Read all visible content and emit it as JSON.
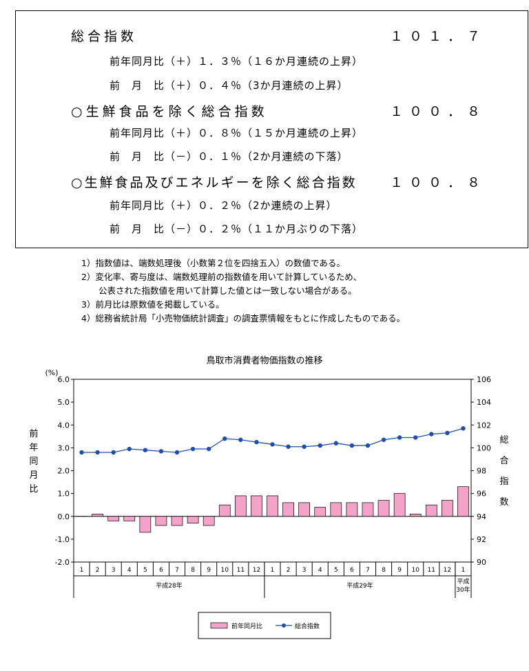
{
  "summary": {
    "items": [
      {
        "label": "総合指数",
        "value": "１０１．７",
        "yoy": "前年同月比（＋）１．３％（１６か月連続の上昇）",
        "mom": "前　月　比（＋）０．４％（3か月連続の上昇）"
      },
      {
        "label": "○生鮮食品を除く総合指数",
        "value": "１００．８",
        "yoy": "前年同月比（＋）０．８％（１５か月連続の上昇）",
        "mom": "前　月　比（－）０．１％（2か月連続の下落）"
      },
      {
        "label": "○生鮮食品及びエネルギーを除く総合指数",
        "value": "１００．８",
        "yoy": "前年同月比（＋）０．２％（2か連続の上昇）",
        "mom": "前　月　比（－）０．２％（１１か月ぶりの下落）"
      }
    ]
  },
  "notes": [
    "1）指数値は、端数処理後（小数第２位を四捨五入）の数値である。",
    "2）変化率、寄与度は、端数処理前の指数値を用いて計算しているため、",
    "　　公表された指数値を用いて計算した値とは一致しない場合がある。",
    "3）前月比は原数値を掲載している。",
    "4）総務省統計局「小売物価統計調査」の調査票情報をもとに作成したものである。"
  ],
  "chart_data": {
    "type": "bar",
    "title": "鳥取市消費者物価指数の推移",
    "y_unit": "(%)",
    "ylabel": "前年同月比",
    "y2label": "総合指数",
    "ylim": [
      -2.0,
      6.0
    ],
    "y_ticks": [
      "6.0",
      "5.0",
      "4.0",
      "3.0",
      "2.0",
      "1.0",
      "0.0",
      "-1.0",
      "-2.0"
    ],
    "y2lim": [
      90,
      106
    ],
    "y2_ticks": [
      "106",
      "104",
      "102",
      "100",
      "98",
      "96",
      "94",
      "92",
      "90"
    ],
    "categories": [
      "1",
      "2",
      "3",
      "4",
      "5",
      "6",
      "7",
      "8",
      "9",
      "10",
      "11",
      "12",
      "1",
      "2",
      "3",
      "4",
      "5",
      "6",
      "7",
      "8",
      "9",
      "10",
      "11",
      "12",
      "1"
    ],
    "year_groups": [
      {
        "label": "平成28年",
        "count": 12
      },
      {
        "label": "平成29年",
        "count": 12
      },
      {
        "label": "平成\n30年",
        "count": 1
      }
    ],
    "series": [
      {
        "name": "前年同月比",
        "type": "bar",
        "axis": "left",
        "color": "#f4a3c8",
        "values": [
          0.0,
          0.1,
          -0.2,
          -0.2,
          -0.7,
          -0.4,
          -0.4,
          -0.3,
          -0.4,
          0.5,
          0.9,
          0.9,
          0.9,
          0.6,
          0.6,
          0.4,
          0.6,
          0.6,
          0.6,
          0.7,
          1.0,
          0.1,
          0.5,
          0.7,
          1.3
        ]
      },
      {
        "name": "総合指数",
        "type": "line",
        "axis": "right",
        "color": "#1f4fa8",
        "values": [
          99.6,
          99.6,
          99.6,
          99.9,
          99.8,
          99.7,
          99.6,
          99.9,
          99.9,
          100.8,
          100.7,
          100.5,
          100.3,
          100.1,
          100.1,
          100.2,
          100.4,
          100.2,
          100.2,
          100.7,
          100.9,
          100.9,
          101.2,
          101.3,
          101.7
        ]
      }
    ],
    "legend_position": "bottom",
    "grid": false
  }
}
